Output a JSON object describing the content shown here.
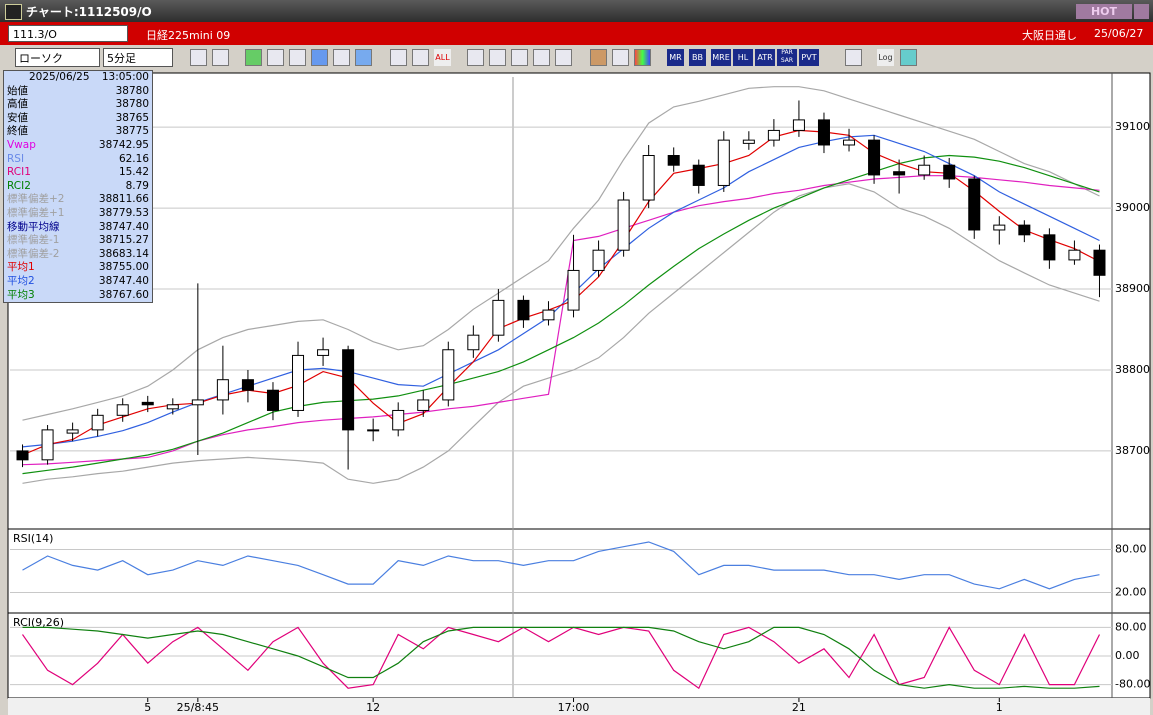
{
  "window": {
    "title": "チャート:1112509/O",
    "hot": "HOT"
  },
  "header": {
    "symbol": "111.3/O",
    "name": "日経225mini 09",
    "market": "大阪日通し",
    "date": "25/06/27"
  },
  "toolbar": {
    "chart_type": "ローソク",
    "interval": "5分足",
    "buttons": [
      "ALL",
      "MR",
      "BB",
      "MRE",
      "HL",
      "ATR",
      "PAR SAR",
      "PVT",
      "Log"
    ]
  },
  "info_panel": {
    "date": "2025/06/25",
    "time": "13:05:00",
    "rows": [
      {
        "label": "始値",
        "value": "38780",
        "color": "#000000"
      },
      {
        "label": "高値",
        "value": "38780",
        "color": "#000000"
      },
      {
        "label": "安値",
        "value": "38765",
        "color": "#000000"
      },
      {
        "label": "終値",
        "value": "38775",
        "color": "#000000"
      },
      {
        "label": "Vwap",
        "value": "38742.95",
        "color": "#e000e0"
      },
      {
        "label": "RSI",
        "value": "62.16",
        "color": "#6a8ae8"
      },
      {
        "label": "RCI1",
        "value": "15.42",
        "color": "#e0007a"
      },
      {
        "label": "RCI2",
        "value": "8.79",
        "color": "#008000"
      },
      {
        "label": "標準偏差+2",
        "value": "38811.66",
        "color": "#a0a0a0"
      },
      {
        "label": "標準偏差+1",
        "value": "38779.53",
        "color": "#a0a0a0"
      },
      {
        "label": "移動平均線",
        "value": "38747.40",
        "color": "#00008c"
      },
      {
        "label": "標準偏差-1",
        "value": "38715.27",
        "color": "#a0a0a0"
      },
      {
        "label": "標準偏差-2",
        "value": "38683.14",
        "color": "#a0a0a0"
      },
      {
        "label": "平均1",
        "value": "38755.00",
        "color": "#e00000"
      },
      {
        "label": "平均2",
        "value": "38747.40",
        "color": "#2050e0"
      },
      {
        "label": "平均3",
        "value": "38767.60",
        "color": "#008000"
      }
    ]
  },
  "chart_data": [
    {
      "type": "candlestick",
      "ylim": [
        38606,
        39162
      ],
      "yticks": [
        38700,
        38800,
        38900,
        39000,
        39100
      ],
      "grid": true,
      "categories": [
        null,
        null,
        null,
        null,
        null,
        "5",
        null,
        "25/8:45",
        null,
        null,
        null,
        null,
        null,
        null,
        "12",
        null,
        null,
        null,
        null,
        null,
        null,
        null,
        "17:00",
        null,
        null,
        null,
        null,
        null,
        null,
        null,
        null,
        "21",
        null,
        null,
        null,
        null,
        null,
        null,
        null,
        "1",
        null,
        null,
        null,
        null
      ],
      "open": [
        38700,
        38689,
        38722,
        38726,
        38744,
        38760,
        38752,
        38757,
        38763,
        38788,
        38775,
        38750,
        38818,
        38825,
        38726,
        38726,
        38750,
        38763,
        38825,
        38843,
        38886,
        38862,
        38874,
        38923,
        38948,
        39010,
        39065,
        39053,
        39028,
        39080,
        39084,
        39096,
        39109,
        39078,
        39084,
        39045,
        39041,
        39053,
        39036,
        38973,
        38979,
        38967,
        38936,
        38948
      ],
      "high": [
        38708,
        38732,
        38735,
        38752,
        38765,
        38768,
        38765,
        38907,
        38830,
        38800,
        38785,
        38835,
        38840,
        38830,
        38740,
        38760,
        38775,
        38835,
        38855,
        38900,
        38892,
        38885,
        38967,
        38960,
        39020,
        39078,
        39075,
        39060,
        39095,
        39095,
        39110,
        39133,
        39118,
        39098,
        39090,
        39060,
        39065,
        39062,
        39040,
        38990,
        38985,
        38975,
        38960,
        38955
      ],
      "low": [
        38680,
        38683,
        38712,
        38718,
        38736,
        38748,
        38745,
        38695,
        38745,
        38760,
        38738,
        38742,
        38805,
        38677,
        38712,
        38718,
        38742,
        38755,
        38815,
        38835,
        38852,
        38855,
        38865,
        38915,
        38940,
        39000,
        39045,
        39018,
        39020,
        39072,
        39076,
        39088,
        39068,
        39070,
        39030,
        39018,
        39035,
        39025,
        38962,
        38955,
        38958,
        38925,
        38930,
        38890
      ],
      "close": [
        38689,
        38726,
        38726,
        38744,
        38757,
        38757,
        38757,
        38763,
        38788,
        38775,
        38750,
        38818,
        38825,
        38726,
        38726,
        38750,
        38763,
        38825,
        38843,
        38886,
        38862,
        38874,
        38923,
        38948,
        39010,
        39065,
        39053,
        39028,
        39084,
        39084,
        39096,
        39109,
        39078,
        39084,
        39041,
        39041,
        39053,
        39036,
        38973,
        38979,
        38967,
        38936,
        38948,
        38917
      ],
      "series": [
        {
          "color": "#a8a8a8",
          "values": [
            38738,
            38745,
            38752,
            38760,
            38768,
            38780,
            38800,
            38825,
            38840,
            38850,
            38855,
            38860,
            38862,
            38850,
            38835,
            38825,
            38830,
            38850,
            38875,
            38895,
            38915,
            38935,
            38975,
            39010,
            39060,
            39105,
            39125,
            39132,
            39140,
            39148,
            39150,
            39150,
            39145,
            39135,
            39125,
            39115,
            39105,
            39095,
            39085,
            39070,
            39055,
            39045,
            39030,
            39015
          ]
        },
        {
          "color": "#a8a8a8",
          "values": [
            38660,
            38665,
            38668,
            38672,
            38675,
            38680,
            38685,
            38688,
            38690,
            38692,
            38690,
            38688,
            38685,
            38665,
            38660,
            38665,
            38680,
            38700,
            38730,
            38760,
            38780,
            38790,
            38800,
            38815,
            38840,
            38870,
            38895,
            38920,
            38945,
            38970,
            38995,
            39015,
            39025,
            39030,
            39020,
            39000,
            38990,
            38975,
            38955,
            38935,
            38920,
            38905,
            38895,
            38885
          ]
        },
        {
          "color": "#e020c0",
          "values": [
            38683,
            38684,
            38686,
            38688,
            38690,
            38692,
            38700,
            38712,
            38720,
            38726,
            38730,
            38735,
            38738,
            38740,
            38742,
            38745,
            38748,
            38752,
            38755,
            38760,
            38765,
            38770,
            38960,
            38965,
            38975,
            38985,
            38995,
            39003,
            39008,
            39012,
            39018,
            39022,
            39028,
            39032,
            39036,
            39038,
            39040,
            39040,
            39038,
            39035,
            39032,
            39028,
            39025,
            39022
          ]
        },
        {
          "color": "#109010",
          "values": [
            38672,
            38676,
            38680,
            38685,
            38690,
            38695,
            38702,
            38712,
            38722,
            38735,
            38748,
            38755,
            38760,
            38762,
            38764,
            38768,
            38775,
            38782,
            38790,
            38798,
            38810,
            38825,
            38840,
            38858,
            38880,
            38905,
            38928,
            38950,
            38968,
            38985,
            39000,
            39012,
            39025,
            39035,
            39045,
            39055,
            39062,
            39065,
            39063,
            39058,
            39050,
            39040,
            39030,
            39020
          ]
        },
        {
          "color": "#3060e0",
          "values": [
            38705,
            38708,
            38712,
            38718,
            38725,
            38735,
            38748,
            38760,
            38770,
            38780,
            38790,
            38800,
            38802,
            38798,
            38790,
            38782,
            38780,
            38795,
            38810,
            38825,
            38845,
            38865,
            38895,
            38925,
            38950,
            38975,
            38995,
            39010,
            39025,
            39045,
            39060,
            39075,
            39082,
            39088,
            39090,
            39080,
            39070,
            39055,
            39040,
            39020,
            39005,
            38990,
            38975,
            38960
          ]
        },
        {
          "color": "#e00000",
          "values": [
            38695,
            38708,
            38714,
            38732,
            38742,
            38752,
            38757,
            38759,
            38769,
            38775,
            38771,
            38781,
            38798,
            38790,
            38759,
            38734,
            38746,
            38779,
            38810,
            38851,
            38864,
            38874,
            38886,
            38915,
            38960,
            39008,
            39043,
            39049,
            39055,
            39065,
            39088,
            39096,
            39094,
            39090,
            39068,
            39055,
            39045,
            39043,
            39021,
            38996,
            38973,
            38961,
            38950,
            38934
          ]
        }
      ]
    },
    {
      "type": "line",
      "title": "RSI(14)",
      "ylim": [
        -3,
        103
      ],
      "yticks": [
        {
          "value": 80,
          "label": "80.00"
        },
        {
          "value": 20,
          "label": "20.00"
        }
      ],
      "grid": true,
      "series": [
        {
          "color": "#4a7fe0",
          "values": [
            51.3,
            70.9,
            57.8,
            51.3,
            64.3,
            44.8,
            51.3,
            64.3,
            57.8,
            70.9,
            64.3,
            57.8,
            44.8,
            31.7,
            31.7,
            64.3,
            57.8,
            70.9,
            64.3,
            64.3,
            57.8,
            64.3,
            64.3,
            77.4,
            83.9,
            90.4,
            77.4,
            44.8,
            57.8,
            57.8,
            51.3,
            51.3,
            51.3,
            44.8,
            44.8,
            38.3,
            44.8,
            44.8,
            31.7,
            25.2,
            38.3,
            25.2,
            38.3,
            44.8
          ]
        }
      ]
    },
    {
      "type": "line",
      "title": "RCI(9,26)",
      "ylim": [
        -109,
        109
      ],
      "yticks": [
        {
          "value": 80,
          "label": "80.00"
        },
        {
          "value": 0,
          "label": "0.00"
        },
        {
          "value": -80,
          "label": "-80.00"
        }
      ],
      "grid": true,
      "series": [
        {
          "color": "#e0007a",
          "values": [
            60,
            -40,
            -80,
            -20,
            60,
            -20,
            40,
            80,
            20,
            -40,
            40,
            80,
            -20,
            -90,
            -80,
            60,
            20,
            80,
            60,
            40,
            80,
            40,
            80,
            60,
            80,
            70,
            -40,
            -90,
            60,
            80,
            40,
            -20,
            20,
            -60,
            60,
            -80,
            -60,
            80,
            -40,
            -80,
            60,
            -80,
            -80,
            60
          ]
        },
        {
          "color": "#108010",
          "values": [
            80,
            80,
            75,
            70,
            60,
            50,
            60,
            70,
            60,
            40,
            20,
            0,
            -30,
            -60,
            -60,
            -20,
            40,
            70,
            80,
            80,
            80,
            80,
            80,
            80,
            80,
            80,
            70,
            40,
            20,
            40,
            80,
            80,
            60,
            20,
            -40,
            -80,
            -90,
            -80,
            -90,
            -90,
            -85,
            -90,
            -90,
            -85
          ]
        }
      ]
    }
  ]
}
